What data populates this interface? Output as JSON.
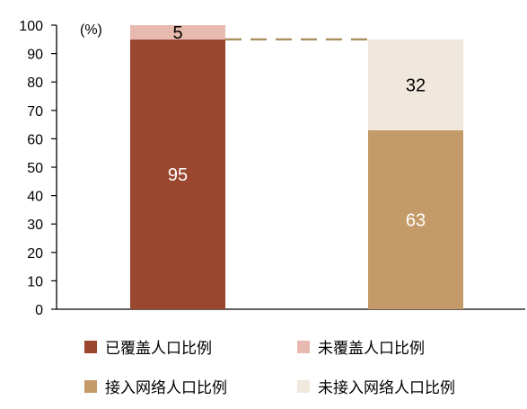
{
  "chart_data": {
    "type": "bar",
    "stacked": true,
    "unit_label": "(%)",
    "ylim": [
      0,
      100
    ],
    "yticks": [
      0,
      10,
      20,
      30,
      40,
      50,
      60,
      70,
      80,
      90,
      100
    ],
    "grid": false,
    "categories": [
      "",
      ""
    ],
    "series": [
      {
        "name": "已覆盖人口比例",
        "values": [
          95,
          null
        ],
        "color": "#9b4730",
        "label_color": "#ffffff"
      },
      {
        "name": "未覆盖人口比例",
        "values": [
          5,
          null
        ],
        "color": "#e8b9ae",
        "label_color": "#000000"
      },
      {
        "name": "接入网络人口比例",
        "values": [
          null,
          63
        ],
        "color": "#c49a68",
        "label_color": "#ffffff"
      },
      {
        "name": "未接入网络人口比例",
        "values": [
          null,
          32
        ],
        "color": "#f1e8dd",
        "label_color": "#000000"
      }
    ],
    "connector": {
      "value": 95,
      "style": "dashed",
      "color": "#a98f5e"
    },
    "legend_position": "bottom"
  }
}
